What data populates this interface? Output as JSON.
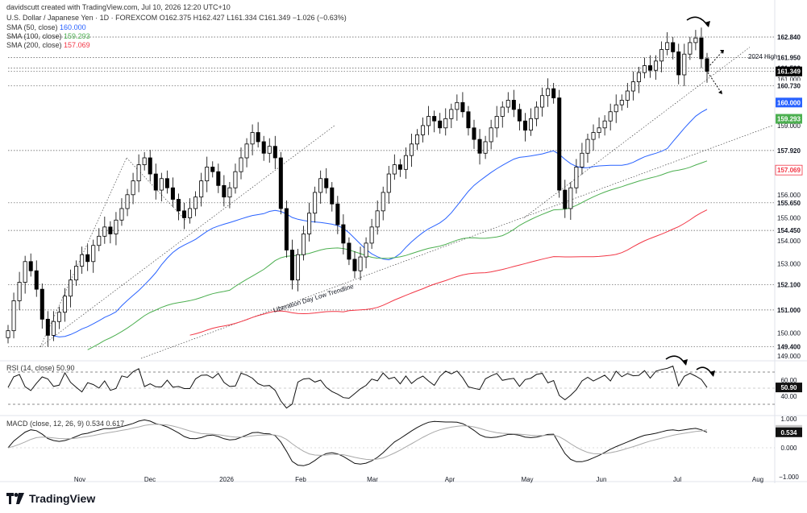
{
  "header": {
    "created_by": "davidscutt created with TradingView.com, Jul 10, 2026 12:20 UTC+10",
    "symbol_line": "U.S. Dollar / Japanese Yen · 1D · FOREXCOM  O162.375  H162.427  L161.334  C161.349  −1.026 (−0.63%)",
    "sma50": {
      "label": "SMA (50, close)",
      "value": "160.000",
      "color": "#2962ff"
    },
    "sma100": {
      "label": "SMA (100, close)",
      "value": "159.293",
      "color": "#4caf50"
    },
    "sma200": {
      "label": "SMA (200, close)",
      "value": "157.069",
      "color": "#f23645"
    }
  },
  "logo": {
    "text": "TradingView"
  },
  "chart_data": [
    {
      "type": "candlestick",
      "title": "U.S. Dollar / Japanese Yen · 1D · FOREXCOM",
      "ylim": [
        148.9,
        163.4
      ],
      "x_labels": [
        "Nov",
        "Dec",
        "2026",
        "Feb",
        "Mar",
        "Apr",
        "May",
        "Jun",
        "Jul",
        "Aug"
      ],
      "price_levels": [
        "162.840",
        "161.950",
        "161.500",
        "161.349",
        "160.730",
        "157.920",
        "155.650",
        "154.450",
        "152.100",
        "151.000",
        "149.400"
      ],
      "axis_ticks": [
        "161.000",
        "159.000",
        "156.000",
        "155.000",
        "154.000",
        "153.000",
        "150.000",
        "149.000"
      ],
      "axis_ticks_hidden_under_labels": [
        "160.000",
        "157.000"
      ],
      "badges": [
        {
          "text": "160.000",
          "bg": "#2962ff",
          "fg": "#ffffff"
        },
        {
          "text": "159.293",
          "bg": "#4caf50",
          "fg": "#ffffff"
        },
        {
          "text": "157.069",
          "bg": "#ffffff",
          "fg": "#f23645"
        },
        {
          "text": "161.349",
          "bg": "#000000",
          "fg": "#ffffff"
        }
      ],
      "annotations": [
        "2024 High",
        "Liberation Day Low Trendline"
      ],
      "series": [
        {
          "name": "SMA (50, close)",
          "color": "#2962ff"
        },
        {
          "name": "SMA (100, close)",
          "color": "#4caf50"
        },
        {
          "name": "SMA (200, close)",
          "color": "#f23645"
        }
      ],
      "closes": [
        150.1,
        151.4,
        152.2,
        153.1,
        152.7,
        151.9,
        150.6,
        149.9,
        150.5,
        150.9,
        151.6,
        152.3,
        152.9,
        153.4,
        153.1,
        153.8,
        154.2,
        154.6,
        154.3,
        154.9,
        155.4,
        156.0,
        156.6,
        157.3,
        157.6,
        156.9,
        156.2,
        156.7,
        156.3,
        155.8,
        155.3,
        155.0,
        155.4,
        155.9,
        156.6,
        157.2,
        157.0,
        156.4,
        155.9,
        156.3,
        157.0,
        157.6,
        158.2,
        158.7,
        158.3,
        157.8,
        158.1,
        157.6,
        155.4,
        153.6,
        152.3,
        153.4,
        154.3,
        155.2,
        156.1,
        156.7,
        156.3,
        155.6,
        154.7,
        153.9,
        153.2,
        152.7,
        153.3,
        153.9,
        154.6,
        155.3,
        156.1,
        156.9,
        157.3,
        157.1,
        157.7,
        158.2,
        158.6,
        159.0,
        159.4,
        159.2,
        158.9,
        159.3,
        159.7,
        160.0,
        159.6,
        158.9,
        158.4,
        157.8,
        158.3,
        158.9,
        159.4,
        159.8,
        160.1,
        159.7,
        159.2,
        158.8,
        159.3,
        159.8,
        160.3,
        160.6,
        160.2,
        156.2,
        155.4,
        156.3,
        157.2,
        157.8,
        158.4,
        158.7,
        158.9,
        159.2,
        159.6,
        159.9,
        160.1,
        160.5,
        160.9,
        161.3,
        161.6,
        161.4,
        161.8,
        162.3,
        162.6,
        162.2,
        161.2,
        162.1,
        162.6,
        162.8,
        161.9,
        161.35
      ]
    },
    {
      "type": "line",
      "title": "RSI (14, close) 50.90",
      "ylim": [
        20,
        80
      ],
      "ticks": [
        "60.00",
        "40.00"
      ],
      "badge": "50.90",
      "bands": [
        70,
        30
      ],
      "series": [
        {
          "name": "RSI (14, close)",
          "color": "#111111"
        }
      ],
      "values": [
        50.9,
        64.1,
        67.0,
        51.8,
        47.0,
        56.1,
        64.0,
        61.5,
        52.2,
        53.7,
        69.1,
        57.3,
        51.0,
        45.4,
        56.8,
        54.5,
        50.1,
        59.0,
        47.3,
        49.6,
        65.2,
        63.4,
        70.5,
        74.2,
        52.0,
        55.4,
        51.7,
        51.5,
        60.0,
        51.3,
        52.1,
        49.5,
        49.5,
        61.6,
        66.0,
        66.4,
        62.6,
        68.4,
        57.1,
        52.1,
        52.7,
        68.6,
        66.2,
        62.4,
        55.6,
        52.7,
        53.3,
        47.3,
        34.1,
        25.3,
        30.2,
        57.5,
        61.4,
        62.1,
        57.6,
        60.0,
        51.0,
        45.8,
        42.6,
        38.3,
        37.5,
        43.3,
        49.2,
        53.5,
        61.3,
        59.1,
        68.8,
        61.6,
        63.6,
        55.3,
        65.1,
        55.8,
        61.5,
        65.0,
        58.9,
        53.5,
        64.6,
        71.1,
        67.8,
        71.3,
        62.9,
        51.6,
        49.8,
        48.3,
        61.6,
        65.3,
        68.3,
        59.7,
        61.2,
        62.2,
        52.2,
        60.7,
        62.4,
        67.1,
        68.4,
        56.6,
        59.5,
        40.9,
        35.6,
        41.1,
        48.2,
        59.0,
        63.5,
        58.9,
        62.6,
        66.1,
        58.9,
        71.1,
        64.2,
        68.2,
        65.4,
        65.9,
        71.8,
        62.4,
        71.1,
        73.2,
        74.6,
        77.4,
        52.7,
        64.7,
        68.4,
        65.0,
        60.8,
        50.9
      ]
    },
    {
      "type": "line",
      "title": "MACD (close, 12, 26, 9) 0.534 0.617",
      "ylim": [
        -1.0,
        1.0
      ],
      "ticks": [
        "1.000",
        "0.000",
        "−1.000"
      ],
      "badges": [
        {
          "text": "0.617",
          "bg": "#c8c8c8"
        },
        {
          "text": "0.534",
          "bg": "#111111"
        }
      ],
      "series": [
        {
          "name": "MACD",
          "color": "#111111",
          "values": [
            0.0,
            0.23,
            0.39,
            0.54,
            0.62,
            0.59,
            0.47,
            0.32,
            0.25,
            0.22,
            0.25,
            0.31,
            0.39,
            0.47,
            0.5,
            0.56,
            0.61,
            0.66,
            0.66,
            0.69,
            0.73,
            0.78,
            0.84,
            0.92,
            0.96,
            0.92,
            0.83,
            0.79,
            0.72,
            0.62,
            0.51,
            0.39,
            0.32,
            0.31,
            0.35,
            0.42,
            0.44,
            0.39,
            0.31,
            0.27,
            0.29,
            0.36,
            0.44,
            0.52,
            0.53,
            0.49,
            0.48,
            0.42,
            0.2,
            -0.12,
            -0.47,
            -0.6,
            -0.62,
            -0.56,
            -0.44,
            -0.29,
            -0.2,
            -0.17,
            -0.21,
            -0.3,
            -0.42,
            -0.54,
            -0.56,
            -0.53,
            -0.45,
            -0.33,
            -0.17,
            0.02,
            0.2,
            0.32,
            0.45,
            0.58,
            0.7,
            0.8,
            0.88,
            0.91,
            0.9,
            0.89,
            0.89,
            0.88,
            0.83,
            0.73,
            0.6,
            0.45,
            0.37,
            0.35,
            0.37,
            0.41,
            0.46,
            0.46,
            0.43,
            0.37,
            0.35,
            0.37,
            0.41,
            0.46,
            0.47,
            0.13,
            -0.2,
            -0.4,
            -0.48,
            -0.48,
            -0.43,
            -0.35,
            -0.26,
            -0.16,
            -0.05,
            0.04,
            0.12,
            0.2,
            0.28,
            0.36,
            0.43,
            0.46,
            0.5,
            0.55,
            0.6,
            0.62,
            0.59,
            0.62,
            0.65,
            0.67,
            0.62,
            0.534
          ]
        },
        {
          "name": "Signal",
          "color": "#a8a8a8",
          "values": [
            0.0,
            0.05,
            0.12,
            0.2,
            0.29,
            0.35,
            0.37,
            0.36,
            0.34,
            0.32,
            0.31,
            0.31,
            0.33,
            0.36,
            0.39,
            0.42,
            0.46,
            0.5,
            0.53,
            0.56,
            0.6,
            0.63,
            0.68,
            0.72,
            0.77,
            0.8,
            0.81,
            0.8,
            0.79,
            0.75,
            0.7,
            0.64,
            0.58,
            0.53,
            0.49,
            0.48,
            0.47,
            0.45,
            0.42,
            0.39,
            0.37,
            0.37,
            0.38,
            0.41,
            0.43,
            0.44,
            0.45,
            0.44,
            0.39,
            0.29,
            0.14,
            0.0,
            -0.12,
            -0.21,
            -0.25,
            -0.26,
            -0.25,
            -0.23,
            -0.23,
            -0.24,
            -0.28,
            -0.33,
            -0.37,
            -0.4,
            -0.41,
            -0.39,
            -0.35,
            -0.27,
            -0.18,
            -0.08,
            0.03,
            0.14,
            0.25,
            0.36,
            0.46,
            0.55,
            0.62,
            0.67,
            0.71,
            0.74,
            0.76,
            0.75,
            0.72,
            0.67,
            0.61,
            0.56,
            0.52,
            0.5,
            0.49,
            0.48,
            0.47,
            0.45,
            0.43,
            0.42,
            0.42,
            0.43,
            0.44,
            0.38,
            0.27,
            0.14,
            0.02,
            -0.08,
            -0.16,
            -0.2,
            -0.21,
            -0.2,
            -0.17,
            -0.13,
            -0.08,
            -0.02,
            0.04,
            0.1,
            0.17,
            0.23,
            0.28,
            0.33,
            0.38,
            0.43,
            0.47,
            0.5,
            0.53,
            0.56,
            0.58,
            0.617
          ]
        }
      ]
    }
  ]
}
